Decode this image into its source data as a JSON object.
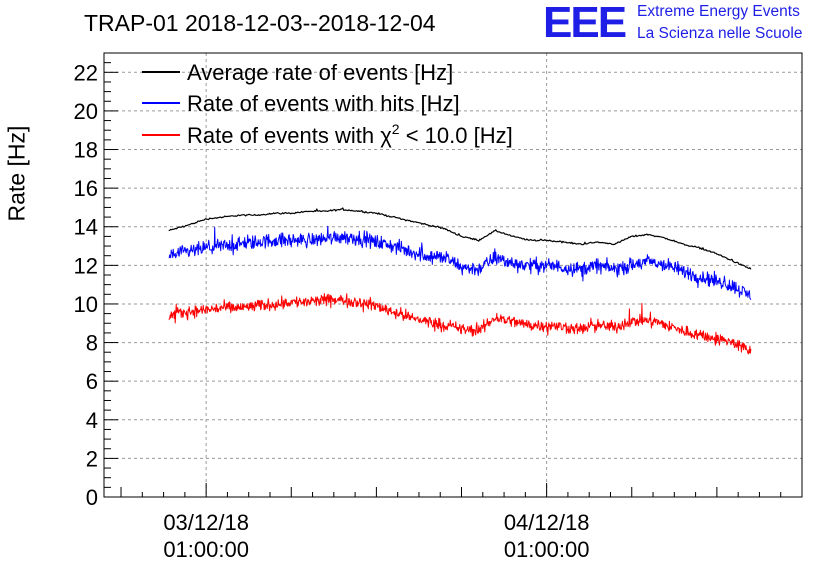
{
  "chart_data": {
    "type": "line",
    "title": "TRAP-01 2018-12-03--2018-12-04",
    "ylabel": "Rate [Hz]",
    "xlabel": "",
    "ylim": [
      0,
      23
    ],
    "yticks": [
      0,
      2,
      4,
      6,
      8,
      10,
      12,
      14,
      16,
      18,
      20,
      22
    ],
    "ytick_labels": [
      "0",
      "2",
      "4",
      "6",
      "8",
      "10",
      "12",
      "14",
      "16",
      "18",
      "20",
      "22"
    ],
    "xlim_hours": [
      -6,
      35
    ],
    "xticks_hours": [
      0,
      20
    ],
    "xtick_labels": [
      {
        "date": "03/12/18",
        "time": "01:00:00"
      },
      {
        "date": "04/12/18",
        "time": "01:00:00"
      }
    ],
    "grid": true,
    "legend_position": "top-left",
    "legend": [
      {
        "name": "Average rate of events [Hz]",
        "color": "#000000"
      },
      {
        "name": "Rate of events with hits [Hz]",
        "color": "#0000ff"
      },
      {
        "name_prefix": "Rate of events with ",
        "chi_symbol": "χ",
        "chi_power": "2",
        "name_suffix": " < 10.0 [Hz]",
        "color": "#ff0000"
      }
    ],
    "series": [
      {
        "name": "Average rate of events [Hz]",
        "color": "#000000",
        "x_hours": [
          -2.2,
          -1.0,
          0.0,
          1.0,
          2.0,
          3.0,
          4.0,
          5.0,
          6.0,
          7.0,
          8.0,
          9.0,
          10.0,
          11.0,
          12.0,
          13.0,
          14.0,
          15.0,
          16.0,
          17.0,
          18.0,
          19.0,
          20.0,
          21.0,
          22.0,
          23.0,
          24.0,
          25.0,
          26.0,
          27.0,
          28.0,
          29.0,
          30.0,
          31.0,
          32.0
        ],
        "values": [
          13.8,
          14.1,
          14.4,
          14.5,
          14.6,
          14.6,
          14.7,
          14.7,
          14.8,
          14.8,
          14.9,
          14.8,
          14.7,
          14.5,
          14.3,
          14.1,
          13.9,
          13.5,
          13.3,
          13.8,
          13.5,
          13.3,
          13.3,
          13.2,
          13.1,
          13.2,
          13.1,
          13.5,
          13.6,
          13.4,
          13.1,
          12.9,
          12.6,
          12.2,
          11.8
        ],
        "noise": 0.06
      },
      {
        "name": "Rate of events with hits [Hz]",
        "color": "#0000ff",
        "x_hours": [
          -2.2,
          -1.0,
          0.0,
          1.0,
          2.0,
          3.0,
          4.0,
          5.0,
          6.0,
          7.0,
          8.0,
          9.0,
          10.0,
          11.0,
          12.0,
          13.0,
          14.0,
          15.0,
          16.0,
          17.0,
          18.0,
          19.0,
          20.0,
          21.0,
          22.0,
          23.0,
          24.0,
          25.0,
          26.0,
          27.0,
          28.0,
          29.0,
          30.0,
          31.0,
          32.0
        ],
        "values": [
          12.5,
          12.7,
          12.9,
          13.0,
          13.1,
          13.2,
          13.3,
          13.3,
          13.3,
          13.4,
          13.5,
          13.4,
          13.2,
          13.0,
          12.7,
          12.5,
          12.4,
          11.9,
          11.8,
          12.4,
          12.1,
          12.0,
          12.0,
          11.9,
          11.8,
          12.0,
          11.8,
          12.0,
          12.2,
          12.0,
          11.7,
          11.4,
          11.2,
          10.9,
          10.4
        ],
        "noise": 0.55
      },
      {
        "name": "Rate of events with χ2 < 10.0 [Hz]",
        "color": "#ff0000",
        "x_hours": [
          -2.2,
          -1.0,
          0.0,
          1.0,
          2.0,
          3.0,
          4.0,
          5.0,
          6.0,
          7.0,
          8.0,
          9.0,
          10.0,
          11.0,
          12.0,
          13.0,
          14.0,
          15.0,
          16.0,
          17.0,
          18.0,
          19.0,
          20.0,
          21.0,
          22.0,
          23.0,
          24.0,
          25.0,
          26.0,
          27.0,
          28.0,
          29.0,
          30.0,
          31.0,
          32.0
        ],
        "values": [
          9.4,
          9.6,
          9.7,
          9.8,
          9.8,
          9.9,
          10.0,
          10.1,
          10.1,
          10.2,
          10.2,
          10.1,
          9.9,
          9.6,
          9.3,
          9.1,
          8.9,
          8.7,
          8.6,
          9.3,
          9.1,
          8.9,
          8.9,
          8.8,
          8.7,
          8.9,
          8.8,
          9.1,
          9.2,
          8.9,
          8.6,
          8.4,
          8.2,
          8.0,
          7.5
        ],
        "noise": 0.45
      }
    ]
  },
  "logo": {
    "mark": "EEE",
    "line1": "Extreme Energy Events",
    "line2": "La Scienza nelle Scuole"
  }
}
